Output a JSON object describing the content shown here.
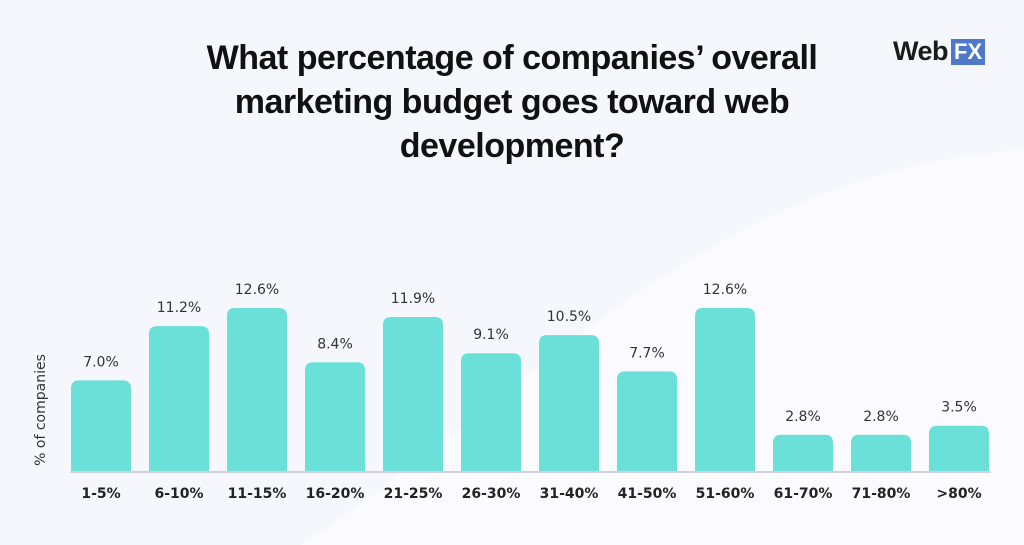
{
  "title": "What percentage of companies’ overall marketing budget goes toward web development?",
  "logo": {
    "text_main": "Web",
    "text_box": "FX",
    "box_color": "#4f79c8"
  },
  "chart_data": {
    "type": "bar",
    "title": "What percentage of companies’ overall marketing budget goes toward web development?",
    "ylabel": "% of companies",
    "xlabel": "",
    "categories": [
      "1-5%",
      "6-10%",
      "11-15%",
      "16-20%",
      "21-25%",
      "26-30%",
      "31-40%",
      "41-50%",
      "51-60%",
      "61-70%",
      "71-80%",
      ">80%"
    ],
    "values": [
      7.0,
      11.2,
      12.6,
      8.4,
      11.9,
      9.1,
      10.5,
      7.7,
      12.6,
      2.8,
      2.8,
      3.5
    ],
    "data_labels": [
      "7.0%",
      "11.2%",
      "12.6%",
      "8.4%",
      "11.9%",
      "9.1%",
      "10.5%",
      "7.7%",
      "12.6%",
      "2.8%",
      "2.8%",
      "3.5%"
    ],
    "grid": false,
    "bar_color": "#6be0d8",
    "axis_color": "#cfd2dc"
  }
}
